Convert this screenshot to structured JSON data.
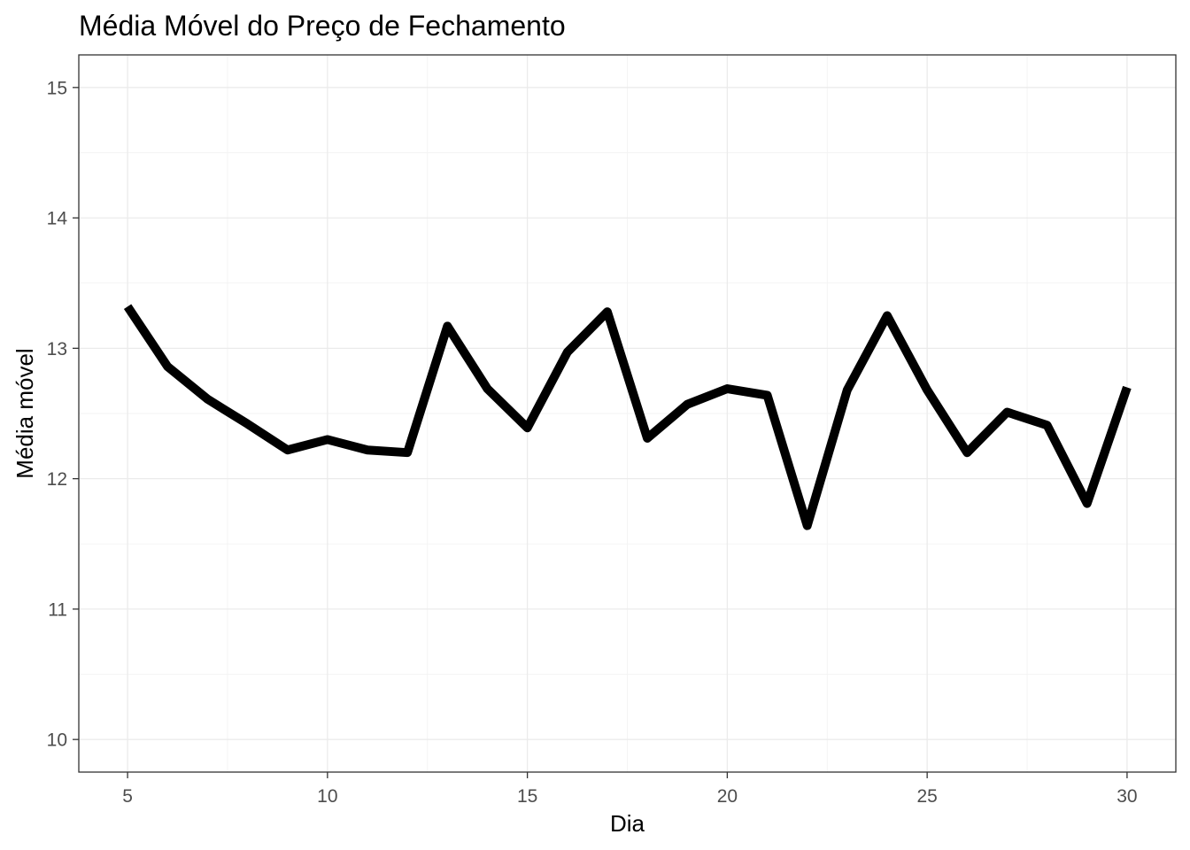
{
  "chart_data": {
    "type": "line",
    "title": "Média Móvel do Preço de Fechamento",
    "xlabel": "Dia",
    "ylabel": "Média móvel",
    "xlim": [
      3.78,
      31.22
    ],
    "ylim": [
      9.75,
      15.25
    ],
    "x_ticks": [
      5,
      10,
      15,
      20,
      25,
      30
    ],
    "y_ticks": [
      10,
      11,
      12,
      13,
      14,
      15
    ],
    "x_tick_labels": [
      "5",
      "10",
      "15",
      "20",
      "25",
      "30"
    ],
    "y_tick_labels": [
      "10",
      "11",
      "12",
      "13",
      "14",
      "15"
    ],
    "x_minor": [
      7.5,
      12.5,
      17.5,
      22.5,
      27.5
    ],
    "y_minor": [
      10.5,
      11.5,
      12.5,
      13.5,
      14.5
    ],
    "grid": true,
    "legend": "none",
    "series": [
      {
        "color": "#000000",
        "x": [
          5,
          6,
          7,
          8,
          9,
          10,
          11,
          12,
          13,
          14,
          15,
          16,
          17,
          18,
          19,
          20,
          21,
          22,
          23,
          24,
          25,
          26,
          27,
          28,
          29,
          30
        ],
        "values": [
          13.32,
          12.86,
          12.61,
          12.42,
          12.22,
          12.3,
          12.22,
          12.2,
          13.17,
          12.69,
          12.39,
          12.97,
          13.28,
          12.31,
          12.57,
          12.69,
          12.64,
          11.64,
          12.68,
          13.25,
          12.68,
          12.2,
          12.51,
          12.41,
          11.81,
          12.7
        ]
      }
    ]
  }
}
